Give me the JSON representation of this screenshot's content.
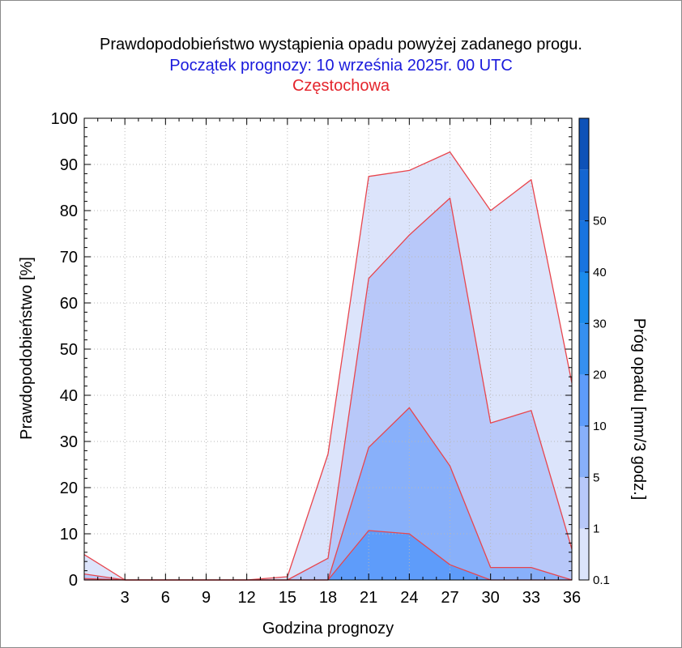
{
  "header": {
    "title": "Prawdopodobieństwo wystąpienia opadu powyżej zadanego progu.",
    "subtitle": "Początek prognozy: 10 września 2025r. 00 UTC",
    "location": "Częstochowa"
  },
  "chart_data": {
    "type": "area",
    "xlabel": "Godzina prognozy",
    "ylabel": "Prawdopodobieństwo [%]",
    "colorbar_label": "Próg opadu [mm/3 godz.]",
    "x": [
      0,
      3,
      6,
      9,
      12,
      15,
      18,
      21,
      24,
      27,
      30,
      33,
      36
    ],
    "xticks": [
      3,
      6,
      9,
      12,
      15,
      18,
      21,
      24,
      27,
      30,
      33,
      36
    ],
    "xlim": [
      0,
      36
    ],
    "ylim": [
      0,
      100
    ],
    "yticks": [
      0,
      10,
      20,
      30,
      40,
      50,
      60,
      70,
      80,
      90,
      100
    ],
    "grid": true,
    "line_color": "#e8454d",
    "series": [
      {
        "threshold": "0.1",
        "color": "#dce4fb",
        "values": [
          5.5,
          0,
          0,
          0,
          0,
          0.7,
          27.3,
          87.4,
          88.7,
          92.7,
          80.0,
          86.7,
          42.7
        ]
      },
      {
        "threshold": "1",
        "color": "#b8c8f9",
        "values": [
          1.3,
          0,
          0,
          0,
          0,
          0,
          4.7,
          65.3,
          74.7,
          82.7,
          34.0,
          36.7,
          6.7
        ]
      },
      {
        "threshold": "5",
        "color": "#88b0fa",
        "values": [
          0.3,
          0,
          0,
          0,
          0,
          0,
          0,
          28.7,
          37.3,
          24.7,
          2.7,
          2.7,
          0
        ]
      },
      {
        "threshold": "10",
        "color": "#5e9cfa",
        "values": [
          0,
          0,
          0,
          0,
          0,
          0,
          0,
          10.7,
          10.0,
          3.3,
          0,
          0,
          0
        ]
      }
    ],
    "colorbar": {
      "labels": [
        "0.1",
        "1",
        "5",
        "10",
        "20",
        "30",
        "40",
        "50"
      ],
      "colors": [
        "#dce4fb",
        "#b8c8f9",
        "#88b0fa",
        "#5e9cfa",
        "#3690f0",
        "#1c8cec",
        "#1874e0",
        "#1466d2",
        "#0e52b8"
      ]
    }
  }
}
